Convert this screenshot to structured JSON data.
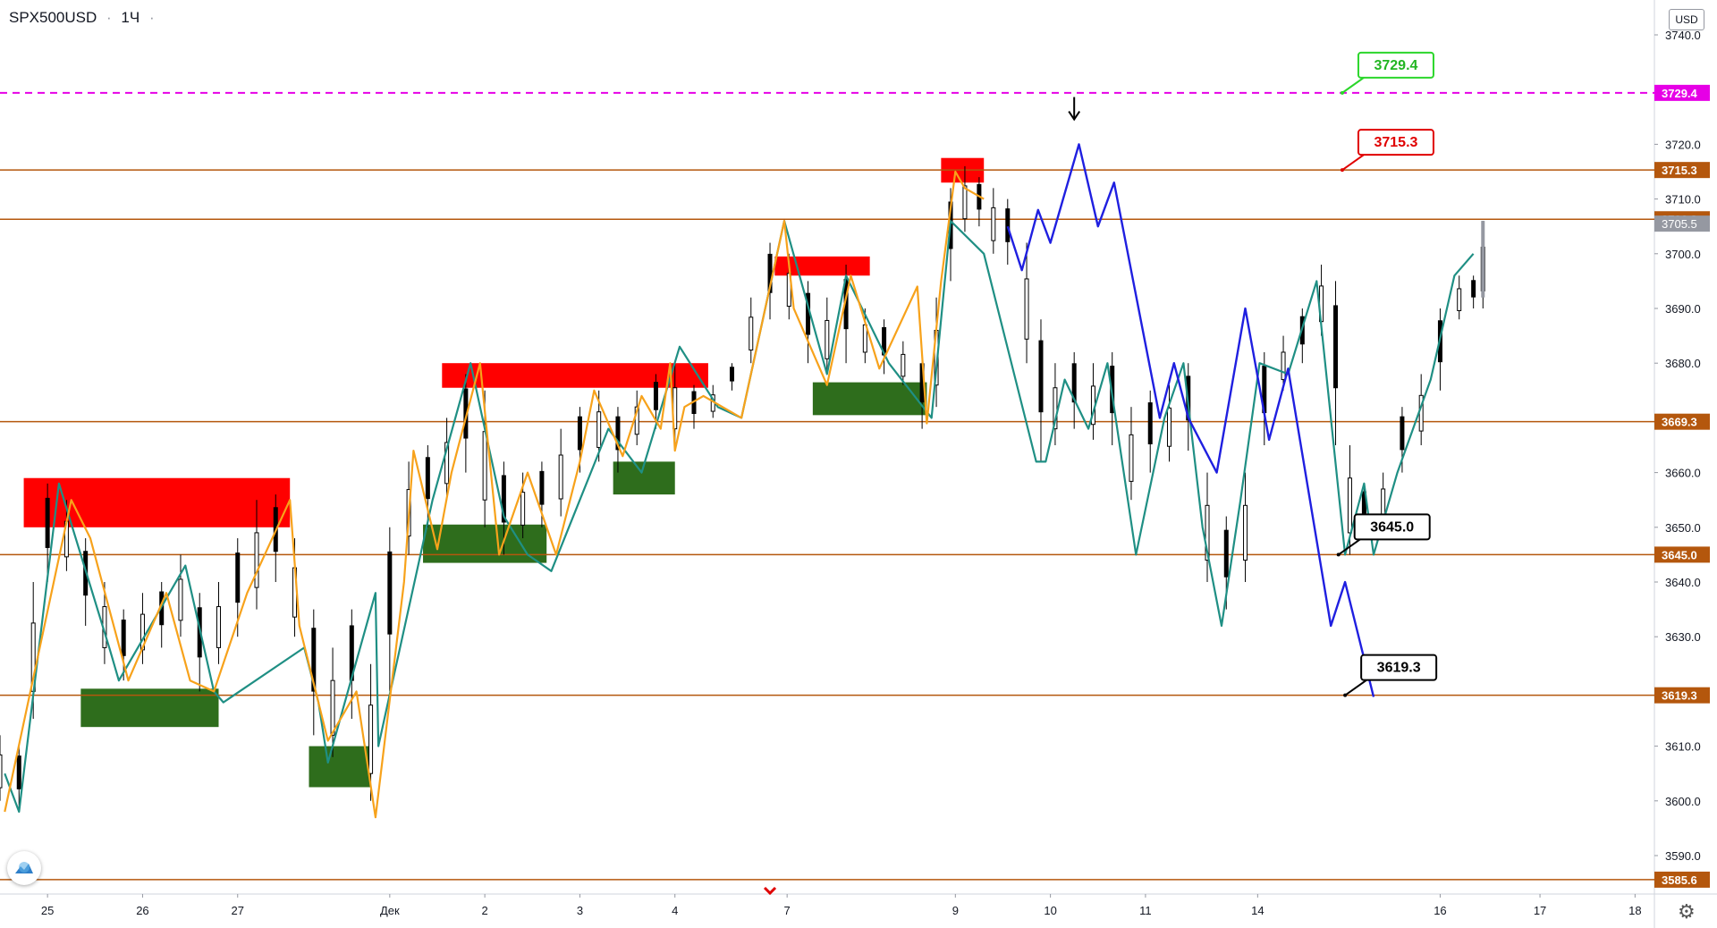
{
  "header": {
    "symbol": "SPX500USD",
    "separator": "·",
    "timeframe": "1Ч",
    "dot": "·"
  },
  "currency_button": "USD",
  "colors": {
    "level_line": "#b4570d",
    "magenta_line": "#e600e6",
    "supply_zone": "#ff0000",
    "demand_zone": "#2e6d1c",
    "zigzag_orange": "#f7a21b",
    "zigzag_teal": "#1f8f84",
    "projection_blue": "#1f1fe0",
    "candles": "#000000"
  },
  "icons": {
    "settings": "gear-icon",
    "logo": "tradingview-logo-icon",
    "down_arrow": "arrow-down-icon",
    "date_marker": "chevron-down-icon"
  },
  "chart_data": {
    "type": "candlestick",
    "symbol": "SPX500USD",
    "timeframe": "1Ч",
    "ylim": [
      3580,
      3747
    ],
    "y_ticks": [
      3590,
      3600,
      3610,
      3620,
      3630,
      3640,
      3650,
      3660,
      3670,
      3680,
      3690,
      3700,
      3710,
      3720,
      3740
    ],
    "y_tick_labels": [
      "3590.0",
      "3600.0",
      "3610.0",
      "3620.0",
      "3630.0",
      "3640.0",
      "3650.0",
      "3660.0",
      "3670.0",
      "3680.0",
      "3690.0",
      "3700.0",
      "3710.0",
      "3720.0",
      "3740.0"
    ],
    "x_ticks": [
      {
        "label": "25",
        "t": 0.5
      },
      {
        "label": "26",
        "t": 1.5
      },
      {
        "label": "27",
        "t": 2.5
      },
      {
        "label": "Дек",
        "t": 4.1
      },
      {
        "label": "2",
        "t": 5.1
      },
      {
        "label": "3",
        "t": 6.1
      },
      {
        "label": "4",
        "t": 7.1
      },
      {
        "label": "7",
        "t": 8.28
      },
      {
        "label": "9",
        "t": 10.05
      },
      {
        "label": "10",
        "t": 11.05
      },
      {
        "label": "11",
        "t": 12.05
      },
      {
        "label": "14",
        "t": 13.23
      },
      {
        "label": "16",
        "t": 15.15
      },
      {
        "label": "17",
        "t": 16.2
      },
      {
        "label": "18",
        "t": 17.2
      }
    ],
    "price_levels": [
      {
        "value": 3729.4,
        "label": "3729.4",
        "style": "dashed",
        "color": "#e600e6"
      },
      {
        "value": 3715.3,
        "label": "3715.3",
        "style": "solid",
        "color": "#b4570d"
      },
      {
        "value": 3706.3,
        "label": "3706.3",
        "style": "solid",
        "color": "#b4570d"
      },
      {
        "value": 3669.3,
        "label": "3669.3",
        "style": "solid",
        "color": "#b4570d"
      },
      {
        "value": 3645.0,
        "label": "3645.0",
        "style": "solid",
        "color": "#b4570d"
      },
      {
        "value": 3619.3,
        "label": "3619.3",
        "style": "solid",
        "color": "#b4570d"
      },
      {
        "value": 3585.6,
        "label": "3585.6",
        "style": "solid",
        "color": "#b4570d"
      }
    ],
    "last_price": {
      "value": 3705.5,
      "label": "3705.5"
    },
    "callouts": [
      {
        "label": "3729.4",
        "t": 14.12,
        "price": 3729.4,
        "border": "#2bd62b",
        "text_color": "#22b522"
      },
      {
        "label": "3715.3",
        "t": 14.12,
        "price": 3715.3,
        "border": "#e00000",
        "text_color": "#e00000"
      },
      {
        "label": "3645.0",
        "t": 14.08,
        "price": 3645.0,
        "border": "#000000",
        "text_color": "#000000"
      },
      {
        "label": "3619.3",
        "t": 14.15,
        "price": 3619.3,
        "border": "#000000",
        "text_color": "#000000"
      }
    ],
    "supply_zones": [
      {
        "t0": 0.25,
        "t1": 3.05,
        "p0": 3650,
        "p1": 3659
      },
      {
        "t0": 4.65,
        "t1": 7.45,
        "p0": 3675.5,
        "p1": 3680
      },
      {
        "t0": 8.15,
        "t1": 9.15,
        "p0": 3696,
        "p1": 3699.5
      },
      {
        "t0": 9.9,
        "t1": 10.35,
        "p0": 3713,
        "p1": 3717.5
      }
    ],
    "demand_zones": [
      {
        "t0": 0.85,
        "t1": 2.3,
        "p0": 3613.5,
        "p1": 3620.5
      },
      {
        "t0": 3.25,
        "t1": 3.9,
        "p0": 3602.5,
        "p1": 3610
      },
      {
        "t0": 4.45,
        "t1": 5.75,
        "p0": 3643.5,
        "p1": 3650.5
      },
      {
        "t0": 6.45,
        "t1": 7.1,
        "p0": 3656,
        "p1": 3662
      },
      {
        "t0": 8.55,
        "t1": 9.75,
        "p0": 3670.5,
        "p1": 3676.5
      }
    ],
    "zigzag_orange": [
      [
        0.05,
        3598
      ],
      [
        0.75,
        3655
      ],
      [
        0.95,
        3648
      ],
      [
        1.35,
        3622
      ],
      [
        1.75,
        3638
      ],
      [
        2.0,
        3622
      ],
      [
        2.25,
        3620
      ],
      [
        2.6,
        3638
      ],
      [
        3.05,
        3655
      ],
      [
        3.15,
        3632
      ],
      [
        3.45,
        3611
      ],
      [
        3.75,
        3620
      ],
      [
        3.95,
        3597
      ],
      [
        4.25,
        3640
      ],
      [
        4.35,
        3664
      ],
      [
        4.6,
        3646
      ],
      [
        4.75,
        3660
      ],
      [
        5.05,
        3680
      ],
      [
        5.25,
        3645
      ],
      [
        5.55,
        3660
      ],
      [
        5.85,
        3645
      ],
      [
        6.1,
        3662
      ],
      [
        6.25,
        3675
      ],
      [
        6.55,
        3663
      ],
      [
        6.75,
        3674
      ],
      [
        6.95,
        3668
      ],
      [
        7.05,
        3680
      ],
      [
        7.1,
        3664
      ],
      [
        7.2,
        3672
      ],
      [
        7.4,
        3674
      ],
      [
        7.8,
        3670
      ],
      [
        8.25,
        3706
      ],
      [
        8.35,
        3690
      ],
      [
        8.7,
        3676
      ],
      [
        8.95,
        3696
      ],
      [
        9.25,
        3679
      ],
      [
        9.65,
        3694
      ],
      [
        9.75,
        3669
      ],
      [
        9.9,
        3695
      ],
      [
        10.05,
        3715
      ],
      [
        10.15,
        3712
      ],
      [
        10.35,
        3710
      ]
    ],
    "zigzag_teal": [
      [
        0.05,
        3605
      ],
      [
        0.2,
        3598
      ],
      [
        0.62,
        3658
      ],
      [
        1.15,
        3628
      ],
      [
        1.25,
        3622
      ],
      [
        1.95,
        3643
      ],
      [
        2.25,
        3620
      ],
      [
        2.35,
        3618
      ],
      [
        3.2,
        3628
      ],
      [
        3.35,
        3618
      ],
      [
        3.45,
        3607
      ],
      [
        3.95,
        3638
      ],
      [
        3.98,
        3610
      ],
      [
        4.55,
        3655
      ],
      [
        4.95,
        3680
      ],
      [
        5.3,
        3652
      ],
      [
        5.55,
        3645
      ],
      [
        5.8,
        3642
      ],
      [
        6.4,
        3668
      ],
      [
        6.75,
        3660
      ],
      [
        7.15,
        3683
      ],
      [
        7.55,
        3672
      ],
      [
        7.8,
        3670
      ],
      [
        8.25,
        3706
      ],
      [
        8.7,
        3678
      ],
      [
        8.9,
        3696
      ],
      [
        9.35,
        3680
      ],
      [
        9.8,
        3670
      ],
      [
        10.0,
        3706
      ],
      [
        10.35,
        3700
      ],
      [
        10.9,
        3662
      ],
      [
        11.0,
        3662
      ],
      [
        11.2,
        3677
      ],
      [
        11.45,
        3668
      ],
      [
        11.65,
        3680
      ],
      [
        11.95,
        3645
      ],
      [
        12.25,
        3670
      ],
      [
        12.45,
        3680
      ],
      [
        12.65,
        3650
      ],
      [
        12.85,
        3632
      ],
      [
        13.05,
        3655
      ],
      [
        13.25,
        3680
      ],
      [
        13.55,
        3678
      ],
      [
        13.85,
        3695
      ],
      [
        14.15,
        3645
      ],
      [
        14.35,
        3658
      ],
      [
        14.45,
        3645
      ],
      [
        14.7,
        3660
      ],
      [
        15.05,
        3677
      ],
      [
        15.3,
        3696
      ],
      [
        15.5,
        3700
      ]
    ],
    "projection_blue": [
      [
        10.6,
        3705
      ],
      [
        10.75,
        3697
      ],
      [
        10.92,
        3708
      ],
      [
        11.05,
        3702
      ],
      [
        11.35,
        3720
      ],
      [
        11.55,
        3705
      ],
      [
        11.72,
        3713
      ],
      [
        12.2,
        3670
      ],
      [
        12.35,
        3680
      ],
      [
        12.5,
        3670
      ],
      [
        12.8,
        3660
      ],
      [
        13.1,
        3690
      ],
      [
        13.35,
        3666
      ],
      [
        13.55,
        3679
      ],
      [
        14.0,
        3632
      ],
      [
        14.15,
        3640
      ],
      [
        14.45,
        3619
      ]
    ],
    "annotation_arrow": {
      "t": 11.3,
      "price": 3727
    },
    "candles_sketch": [
      [
        0.0,
        3600,
        3612
      ],
      [
        0.2,
        3598,
        3610
      ],
      [
        0.35,
        3615,
        3640
      ],
      [
        0.5,
        3640,
        3658
      ],
      [
        0.7,
        3642,
        3655
      ],
      [
        0.9,
        3632,
        3648
      ],
      [
        1.1,
        3625,
        3640
      ],
      [
        1.3,
        3622,
        3635
      ],
      [
        1.5,
        3625,
        3638
      ],
      [
        1.7,
        3628,
        3640
      ],
      [
        1.9,
        3630,
        3645
      ],
      [
        2.1,
        3620,
        3638
      ],
      [
        2.3,
        3625,
        3640
      ],
      [
        2.5,
        3630,
        3648
      ],
      [
        2.7,
        3635,
        3655
      ],
      [
        2.9,
        3640,
        3656
      ],
      [
        3.1,
        3630,
        3648
      ],
      [
        3.3,
        3612,
        3635
      ],
      [
        3.5,
        3608,
        3628
      ],
      [
        3.7,
        3615,
        3635
      ],
      [
        3.9,
        3600,
        3625
      ],
      [
        4.1,
        3620,
        3650
      ],
      [
        4.3,
        3645,
        3662
      ],
      [
        4.5,
        3650,
        3665
      ],
      [
        4.7,
        3655,
        3670
      ],
      [
        4.9,
        3660,
        3678
      ],
      [
        5.1,
        3650,
        3675
      ],
      [
        5.3,
        3645,
        3662
      ],
      [
        5.5,
        3648,
        3660
      ],
      [
        5.7,
        3650,
        3662
      ],
      [
        5.9,
        3652,
        3668
      ],
      [
        6.1,
        3660,
        3672
      ],
      [
        6.3,
        3662,
        3675
      ],
      [
        6.5,
        3660,
        3672
      ],
      [
        6.7,
        3665,
        3675
      ],
      [
        6.9,
        3668,
        3678
      ],
      [
        7.1,
        3665,
        3680
      ],
      [
        7.3,
        3668,
        3676
      ],
      [
        7.5,
        3670,
        3676
      ],
      [
        7.7,
        3675,
        3680
      ],
      [
        7.9,
        3680,
        3692
      ],
      [
        8.1,
        3688,
        3702
      ],
      [
        8.3,
        3688,
        3700
      ],
      [
        8.5,
        3680,
        3695
      ],
      [
        8.7,
        3678,
        3692
      ],
      [
        8.9,
        3680,
        3698
      ],
      [
        9.1,
        3680,
        3690
      ],
      [
        9.3,
        3678,
        3688
      ],
      [
        9.5,
        3676,
        3684
      ],
      [
        9.7,
        3668,
        3682
      ],
      [
        9.85,
        3672,
        3692
      ],
      [
        10.0,
        3695,
        3712
      ],
      [
        10.15,
        3704,
        3716
      ],
      [
        10.3,
        3705,
        3714
      ],
      [
        10.45,
        3700,
        3712
      ],
      [
        10.6,
        3698,
        3710
      ],
      [
        10.8,
        3680,
        3702
      ],
      [
        10.95,
        3662,
        3688
      ],
      [
        11.1,
        3665,
        3680
      ],
      [
        11.3,
        3668,
        3682
      ],
      [
        11.5,
        3666,
        3680
      ],
      [
        11.7,
        3665,
        3682
      ],
      [
        11.9,
        3655,
        3672
      ],
      [
        12.1,
        3660,
        3675
      ],
      [
        12.3,
        3662,
        3676
      ],
      [
        12.5,
        3664,
        3680
      ],
      [
        12.7,
        3640,
        3660
      ],
      [
        12.9,
        3635,
        3652
      ],
      [
        13.1,
        3640,
        3660
      ],
      [
        13.3,
        3665,
        3682
      ],
      [
        13.5,
        3675,
        3685
      ],
      [
        13.7,
        3680,
        3690
      ],
      [
        13.9,
        3685,
        3698
      ],
      [
        14.05,
        3665,
        3695
      ],
      [
        14.2,
        3645,
        3665
      ],
      [
        14.35,
        3648,
        3658
      ],
      [
        14.55,
        3650,
        3660
      ],
      [
        14.75,
        3660,
        3672
      ],
      [
        14.95,
        3665,
        3678
      ],
      [
        15.15,
        3675,
        3690
      ],
      [
        15.35,
        3688,
        3696
      ],
      [
        15.5,
        3690,
        3696
      ],
      [
        15.6,
        3690,
        3706
      ]
    ]
  }
}
